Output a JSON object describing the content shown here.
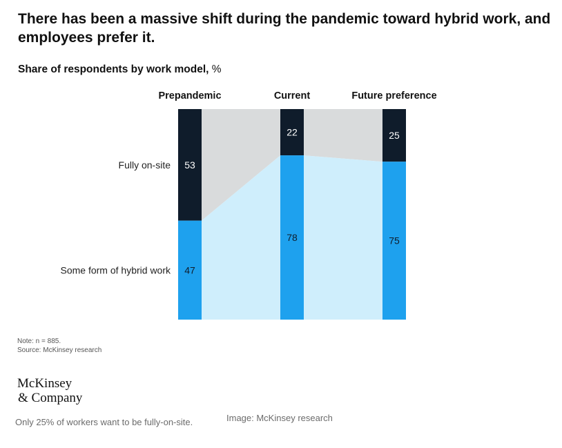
{
  "headline": "There has been a massive shift during the pandemic toward hybrid work, and employees prefer it.",
  "subtitle": {
    "main": "Share of respondents by work model,",
    "unit": "%"
  },
  "chart_data": {
    "type": "bar",
    "stacked": true,
    "orientation": "vertical",
    "normalized": true,
    "title": "Share of respondents by work model, %",
    "categories": [
      "Prepandemic",
      "Current",
      "Future preference"
    ],
    "series": [
      {
        "name": "Fully on-site",
        "values": [
          53,
          22,
          25
        ],
        "color": "#0f1c2b"
      },
      {
        "name": "Some form of hybrid work",
        "values": [
          47,
          78,
          75
        ],
        "color": "#1ea1ee"
      }
    ],
    "band_colors": {
      "on_site": "#d9dbdc",
      "hybrid": "#cfeefc"
    },
    "label_colors": {
      "on_site": "#ffffff",
      "hybrid": "#0f1c2b"
    },
    "ylim": [
      0,
      100
    ],
    "legend": "left-of-first-bar"
  },
  "notes": {
    "note": "Note: n = 885.",
    "source": "Source: McKinsey research"
  },
  "logo": {
    "line1": "McKinsey",
    "line2": "& Company"
  },
  "caption": "Only 25% of workers want to be fully-on-site.",
  "image_credit": "Image: McKinsey research"
}
